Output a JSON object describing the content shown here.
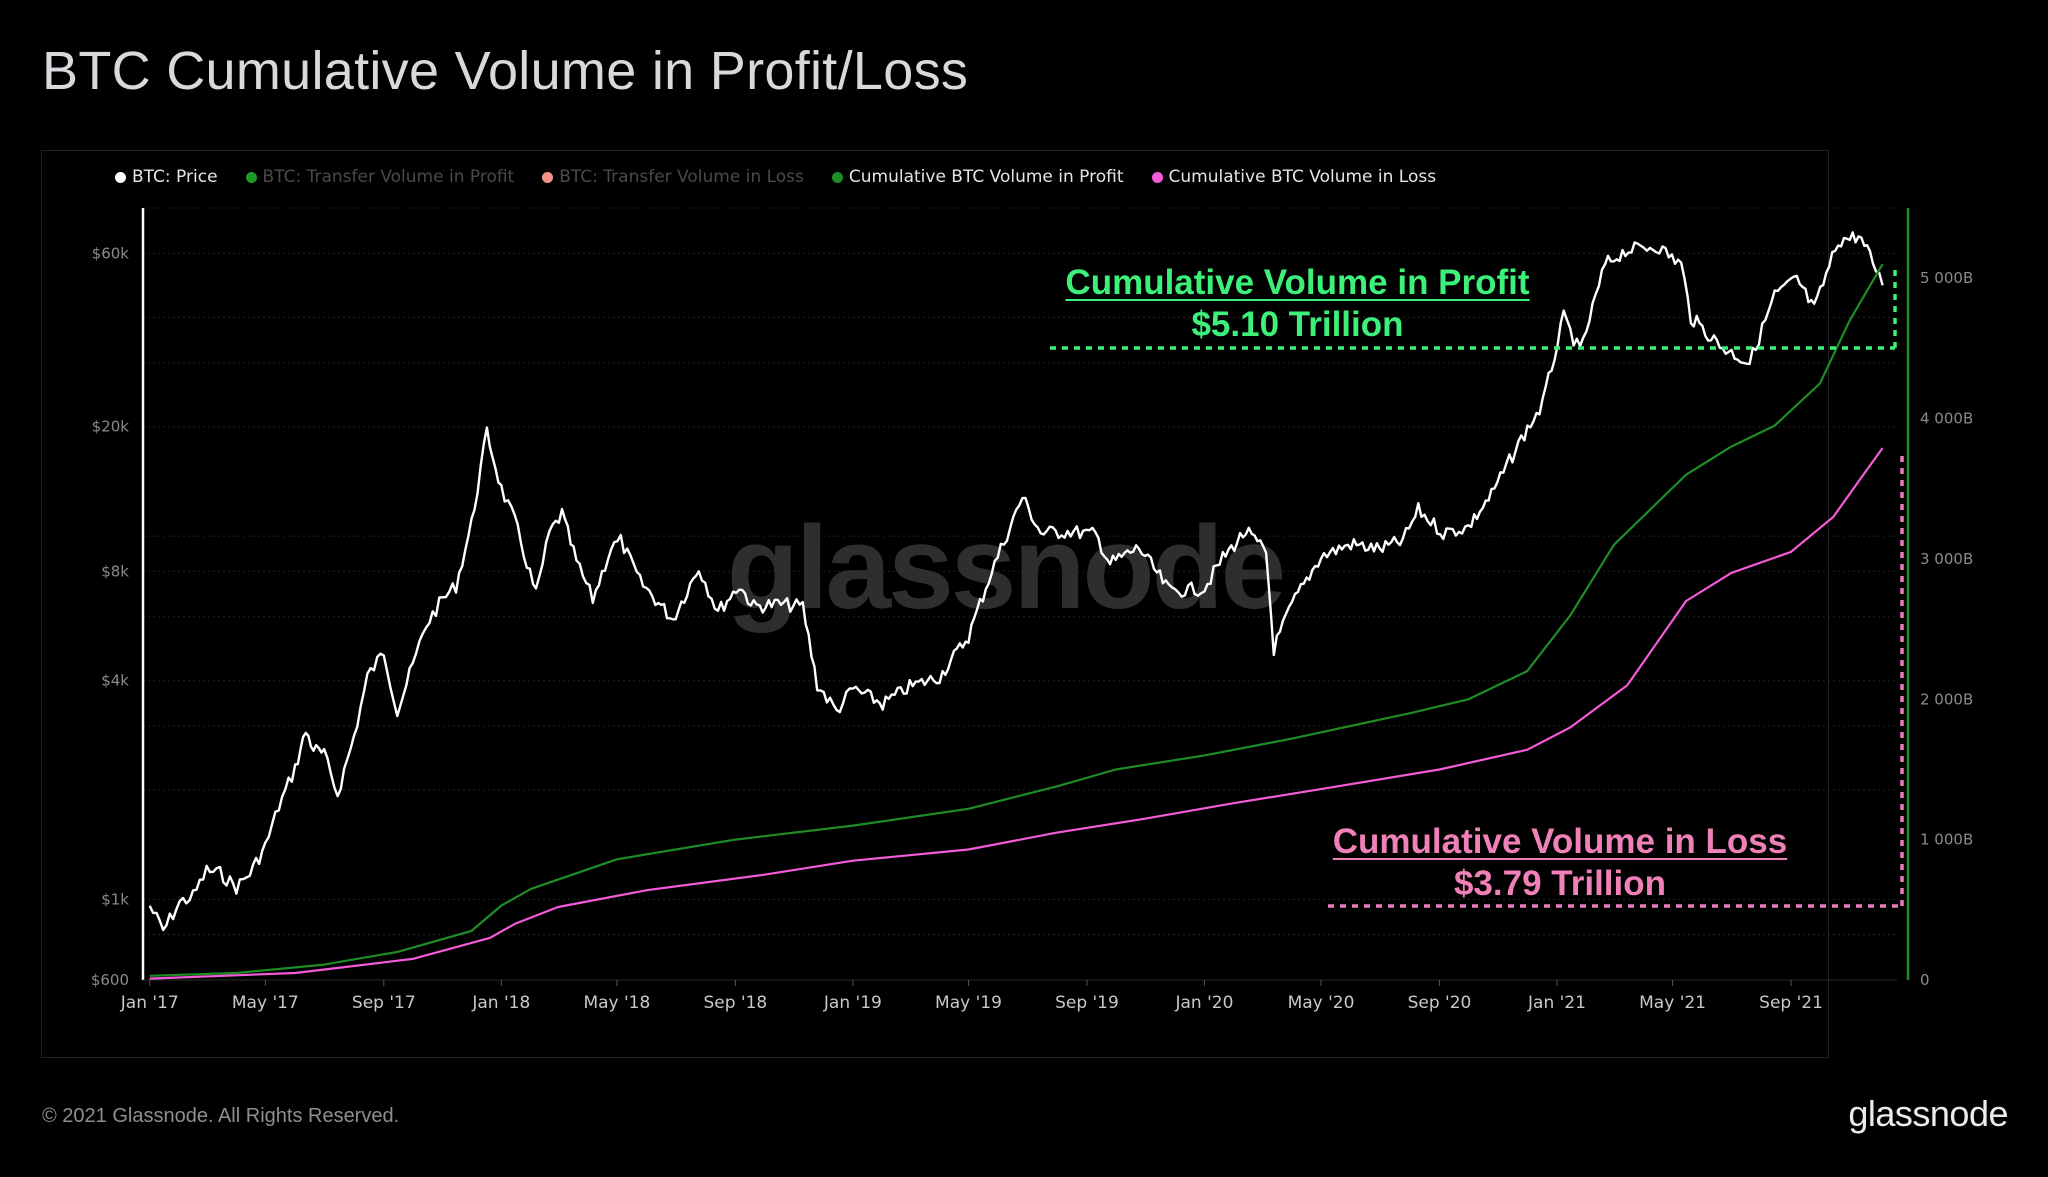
{
  "title": "BTC Cumulative Volume in Profit/Loss",
  "legend": [
    {
      "label": "BTC: Price",
      "color": "#ffffff",
      "text_color": "#e5e5e5"
    },
    {
      "label": "BTC: Transfer Volume in Profit",
      "color": "#1f9a28",
      "text_color": "#4a4a4a"
    },
    {
      "label": "BTC: Transfer Volume in Loss",
      "color": "#f4928a",
      "text_color": "#4a4a4a"
    },
    {
      "label": "Cumulative BTC Volume in Profit",
      "color": "#1e8d26",
      "text_color": "#e5e5e5"
    },
    {
      "label": "Cumulative BTC Volume in Loss",
      "color": "#f45bd8",
      "text_color": "#e5e5e5"
    }
  ],
  "watermark": "glassnode",
  "annotations": {
    "profit": {
      "line1": "Cumulative Volume in Profit",
      "line2": "$5.10 Trillion",
      "color": "#3cf07a"
    },
    "loss": {
      "line1": "Cumulative Volume in Loss",
      "line2": "$3.79 Trillion",
      "color": "#f080b8"
    }
  },
  "footer": {
    "copyright": "© 2021 Glassnode. All Rights Reserved.",
    "brand": "glassnode"
  },
  "chart_data": {
    "type": "line",
    "title": "BTC Cumulative Volume in Profit/Loss",
    "x_ticks": [
      "Jan '17",
      "May '17",
      "Sep '17",
      "Jan '18",
      "May '18",
      "Sep '18",
      "Jan '19",
      "May '19",
      "Sep '19",
      "Jan '20",
      "May '20",
      "Sep '20",
      "Jan '21",
      "May '21",
      "Sep '21"
    ],
    "x_range": [
      "2016-12-25",
      "2021-12-20"
    ],
    "y_left": {
      "label": "",
      "scale": "log",
      "range": [
        600,
        80000
      ],
      "ticks": [
        {
          "value": 600,
          "label": "$600"
        },
        {
          "value": 1000,
          "label": "$1k"
        },
        {
          "value": 4000,
          "label": "$4k"
        },
        {
          "value": 8000,
          "label": "$8k"
        },
        {
          "value": 20000,
          "label": "$20k"
        },
        {
          "value": 60000,
          "label": "$60k"
        }
      ]
    },
    "y_right": {
      "label": "",
      "scale": "linear",
      "range": [
        0,
        5500
      ],
      "ticks": [
        {
          "value": 0,
          "label": "0"
        },
        {
          "value": 1000,
          "label": "1 000B"
        },
        {
          "value": 2000,
          "label": "2 000B"
        },
        {
          "value": 3000,
          "label": "3 000B"
        },
        {
          "value": 4000,
          "label": "4 000B"
        },
        {
          "value": 5000,
          "label": "5 000B"
        }
      ]
    },
    "grid": true,
    "legend_position": "top-left",
    "series": [
      {
        "name": "BTC: Price",
        "axis": "left",
        "color": "#ffffff",
        "points": [
          [
            "2017-01-01",
            960
          ],
          [
            "2017-01-15",
            820
          ],
          [
            "2017-02-01",
            980
          ],
          [
            "2017-02-15",
            1020
          ],
          [
            "2017-03-01",
            1200
          ],
          [
            "2017-03-15",
            1180
          ],
          [
            "2017-04-01",
            1080
          ],
          [
            "2017-04-15",
            1180
          ],
          [
            "2017-05-01",
            1400
          ],
          [
            "2017-05-15",
            1800
          ],
          [
            "2017-06-01",
            2300
          ],
          [
            "2017-06-12",
            2900
          ],
          [
            "2017-06-20",
            2600
          ],
          [
            "2017-07-01",
            2500
          ],
          [
            "2017-07-15",
            1950
          ],
          [
            "2017-08-01",
            2800
          ],
          [
            "2017-08-15",
            4100
          ],
          [
            "2017-09-01",
            4800
          ],
          [
            "2017-09-15",
            3300
          ],
          [
            "2017-10-01",
            4400
          ],
          [
            "2017-10-15",
            5700
          ],
          [
            "2017-11-01",
            6700
          ],
          [
            "2017-11-15",
            7300
          ],
          [
            "2017-12-01",
            10800
          ],
          [
            "2017-12-17",
            19300
          ],
          [
            "2018-01-01",
            13500
          ],
          [
            "2018-01-15",
            11000
          ],
          [
            "2018-02-06",
            6900
          ],
          [
            "2018-02-20",
            10200
          ],
          [
            "2018-03-05",
            11500
          ],
          [
            "2018-03-20",
            8500
          ],
          [
            "2018-04-06",
            6700
          ],
          [
            "2018-04-25",
            9300
          ],
          [
            "2018-05-05",
            9700
          ],
          [
            "2018-05-25",
            7500
          ],
          [
            "2018-06-10",
            6700
          ],
          [
            "2018-06-28",
            5900
          ],
          [
            "2018-07-25",
            8200
          ],
          [
            "2018-08-14",
            6200
          ],
          [
            "2018-09-05",
            7300
          ],
          [
            "2018-09-20",
            6400
          ],
          [
            "2018-10-15",
            6500
          ],
          [
            "2018-11-10",
            6400
          ],
          [
            "2018-11-25",
            3900
          ],
          [
            "2018-12-15",
            3300
          ],
          [
            "2019-01-01",
            3800
          ],
          [
            "2019-02-01",
            3450
          ],
          [
            "2019-03-01",
            3850
          ],
          [
            "2019-04-01",
            4100
          ],
          [
            "2019-05-01",
            5300
          ],
          [
            "2019-05-25",
            8000
          ],
          [
            "2019-06-26",
            12800
          ],
          [
            "2019-07-15",
            10200
          ],
          [
            "2019-08-15",
            10300
          ],
          [
            "2019-09-10",
            10100
          ],
          [
            "2019-09-25",
            8400
          ],
          [
            "2019-10-25",
            9300
          ],
          [
            "2019-11-25",
            7100
          ],
          [
            "2019-12-15",
            7100
          ],
          [
            "2020-01-01",
            7200
          ],
          [
            "2020-01-20",
            8700
          ],
          [
            "2020-02-13",
            10300
          ],
          [
            "2020-03-05",
            9000
          ],
          [
            "2020-03-13",
            4900
          ],
          [
            "2020-04-01",
            6500
          ],
          [
            "2020-05-01",
            8800
          ],
          [
            "2020-06-01",
            9500
          ],
          [
            "2020-07-01",
            9200
          ],
          [
            "2020-07-25",
            9700
          ],
          [
            "2020-08-10",
            11800
          ],
          [
            "2020-09-05",
            10200
          ],
          [
            "2020-10-01",
            10600
          ],
          [
            "2020-10-25",
            13000
          ],
          [
            "2020-11-25",
            18500
          ],
          [
            "2020-12-17",
            23000
          ],
          [
            "2021-01-08",
            40000
          ],
          [
            "2021-01-25",
            32000
          ],
          [
            "2021-02-20",
            56000
          ],
          [
            "2021-03-13",
            61000
          ],
          [
            "2021-04-14",
            63000
          ],
          [
            "2021-05-10",
            56000
          ],
          [
            "2021-05-20",
            40000
          ],
          [
            "2021-06-22",
            33000
          ],
          [
            "2021-07-20",
            30000
          ],
          [
            "2021-08-15",
            46000
          ],
          [
            "2021-09-07",
            51000
          ],
          [
            "2021-09-25",
            42000
          ],
          [
            "2021-10-20",
            65000
          ],
          [
            "2021-11-10",
            67000
          ],
          [
            "2021-11-25",
            57000
          ],
          [
            "2021-12-05",
            49000
          ]
        ]
      },
      {
        "name": "Cumulative BTC Volume in Profit",
        "axis": "right",
        "color": "#1e8d26",
        "points": [
          [
            "2017-01-01",
            30
          ],
          [
            "2017-04-01",
            50
          ],
          [
            "2017-07-01",
            110
          ],
          [
            "2017-09-15",
            200
          ],
          [
            "2017-12-01",
            350
          ],
          [
            "2018-01-01",
            530
          ],
          [
            "2018-02-01",
            650
          ],
          [
            "2018-05-01",
            860
          ],
          [
            "2018-09-01",
            1000
          ],
          [
            "2019-01-01",
            1100
          ],
          [
            "2019-05-01",
            1220
          ],
          [
            "2019-08-01",
            1380
          ],
          [
            "2019-10-01",
            1500
          ],
          [
            "2020-01-01",
            1600
          ],
          [
            "2020-04-01",
            1720
          ],
          [
            "2020-08-01",
            1900
          ],
          [
            "2020-10-01",
            2000
          ],
          [
            "2020-12-01",
            2200
          ],
          [
            "2021-01-15",
            2600
          ],
          [
            "2021-03-01",
            3100
          ],
          [
            "2021-05-15",
            3600
          ],
          [
            "2021-07-01",
            3800
          ],
          [
            "2021-08-15",
            3950
          ],
          [
            "2021-10-01",
            4250
          ],
          [
            "2021-11-01",
            4700
          ],
          [
            "2021-12-05",
            5100
          ]
        ]
      },
      {
        "name": "Cumulative BTC Volume in Loss",
        "axis": "right",
        "color": "#f45bd8",
        "points": [
          [
            "2017-01-01",
            10
          ],
          [
            "2017-06-01",
            50
          ],
          [
            "2017-10-01",
            150
          ],
          [
            "2017-12-20",
            300
          ],
          [
            "2018-01-15",
            400
          ],
          [
            "2018-03-01",
            520
          ],
          [
            "2018-06-01",
            640
          ],
          [
            "2018-10-01",
            750
          ],
          [
            "2019-01-01",
            850
          ],
          [
            "2019-05-01",
            930
          ],
          [
            "2019-08-01",
            1050
          ],
          [
            "2019-11-01",
            1150
          ],
          [
            "2020-02-01",
            1260
          ],
          [
            "2020-05-01",
            1360
          ],
          [
            "2020-09-01",
            1500
          ],
          [
            "2020-12-01",
            1640
          ],
          [
            "2021-01-15",
            1800
          ],
          [
            "2021-03-15",
            2100
          ],
          [
            "2021-05-15",
            2700
          ],
          [
            "2021-07-01",
            2900
          ],
          [
            "2021-09-01",
            3050
          ],
          [
            "2021-10-15",
            3300
          ],
          [
            "2021-11-15",
            3600
          ],
          [
            "2021-12-05",
            3790
          ]
        ]
      }
    ]
  }
}
